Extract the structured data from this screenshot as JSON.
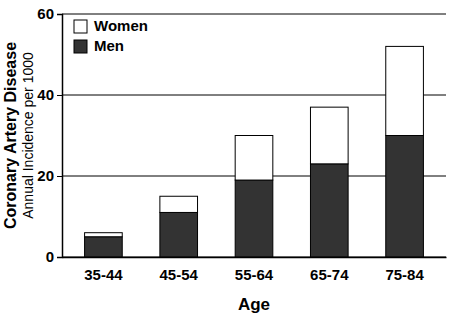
{
  "chart_data": {
    "type": "bar",
    "stacked": true,
    "ylabel": [
      "Coronary Artery Disease",
      "Annual Incidence per 1000"
    ],
    "xlabel": "Age",
    "categories": [
      "35-44",
      "45-54",
      "55-64",
      "65-74",
      "75-84"
    ],
    "series": [
      {
        "name": "Men",
        "color": "#333333",
        "values": [
          5,
          11,
          19,
          23,
          30
        ]
      },
      {
        "name": "Women",
        "color": "#ffffff",
        "values": [
          1,
          4,
          11,
          14,
          22
        ]
      }
    ],
    "ylim": [
      0,
      60
    ],
    "yticks": [
      0,
      20,
      40,
      60
    ],
    "grid": true,
    "legend": "top-left"
  }
}
